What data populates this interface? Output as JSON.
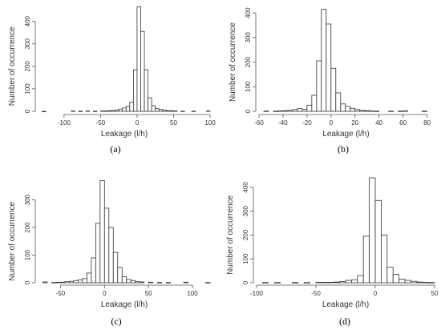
{
  "chart_data": [
    {
      "type": "bar",
      "xlabel": "Leakage (l/h)",
      "ylabel": "Number of occurrence",
      "caption": "(a)",
      "xticks": [
        -100,
        -50,
        0,
        50,
        100
      ],
      "yticks": [
        0,
        100,
        200,
        300,
        400
      ],
      "xlim": [
        -135,
        100
      ],
      "ylim": [
        0,
        470
      ],
      "bin_width": 5,
      "bins": [
        {
          "x": -130,
          "value": 0
        },
        {
          "x": -90,
          "value": 2
        },
        {
          "x": -80,
          "value": 1
        },
        {
          "x": -70,
          "value": 2
        },
        {
          "x": -60,
          "value": 1
        },
        {
          "x": -50,
          "value": 2
        },
        {
          "x": -45,
          "value": 2
        },
        {
          "x": -40,
          "value": 3
        },
        {
          "x": -35,
          "value": 4
        },
        {
          "x": -30,
          "value": 6
        },
        {
          "x": -25,
          "value": 10
        },
        {
          "x": -20,
          "value": 15
        },
        {
          "x": -15,
          "value": 22
        },
        {
          "x": -10,
          "value": 40
        },
        {
          "x": -5,
          "value": 185
        },
        {
          "x": 0,
          "value": 465
        },
        {
          "x": 5,
          "value": 355
        },
        {
          "x": 10,
          "value": 185
        },
        {
          "x": 15,
          "value": 60
        },
        {
          "x": 20,
          "value": 25
        },
        {
          "x": 25,
          "value": 12
        },
        {
          "x": 30,
          "value": 8
        },
        {
          "x": 35,
          "value": 6
        },
        {
          "x": 40,
          "value": 3
        },
        {
          "x": 45,
          "value": 3
        },
        {
          "x": 50,
          "value": 2
        },
        {
          "x": 60,
          "value": 1
        },
        {
          "x": 75,
          "value": 1
        },
        {
          "x": 95,
          "value": 2
        }
      ]
    },
    {
      "type": "bar",
      "xlabel": "Leakage (l/h)",
      "ylabel": "Number of occurrence",
      "caption": "(b)",
      "xticks": [
        -60,
        -40,
        -20,
        0,
        20,
        40,
        60,
        80
      ],
      "yticks": [
        0,
        100,
        200,
        300,
        400
      ],
      "xlim": [
        -60,
        85
      ],
      "ylim": [
        0,
        420
      ],
      "bin_width": 4,
      "bins": [
        {
          "x": -56,
          "value": 1
        },
        {
          "x": -48,
          "value": 1
        },
        {
          "x": -44,
          "value": 2
        },
        {
          "x": -40,
          "value": 3
        },
        {
          "x": -36,
          "value": 4
        },
        {
          "x": -32,
          "value": 7
        },
        {
          "x": -28,
          "value": 11
        },
        {
          "x": -24,
          "value": 8
        },
        {
          "x": -20,
          "value": 25
        },
        {
          "x": -16,
          "value": 65
        },
        {
          "x": -12,
          "value": 205
        },
        {
          "x": -8,
          "value": 415
        },
        {
          "x": -4,
          "value": 355
        },
        {
          "x": 0,
          "value": 175
        },
        {
          "x": 4,
          "value": 75
        },
        {
          "x": 8,
          "value": 30
        },
        {
          "x": 12,
          "value": 20
        },
        {
          "x": 16,
          "value": 12
        },
        {
          "x": 20,
          "value": 7
        },
        {
          "x": 24,
          "value": 4
        },
        {
          "x": 28,
          "value": 3
        },
        {
          "x": 32,
          "value": 2
        },
        {
          "x": 36,
          "value": 1
        },
        {
          "x": 48,
          "value": 1
        },
        {
          "x": 56,
          "value": 1
        },
        {
          "x": 60,
          "value": 2
        },
        {
          "x": 76,
          "value": 1
        }
      ]
    },
    {
      "type": "bar",
      "xlabel": "Leakage (l/h)",
      "ylabel": "Number of occurrence",
      "caption": "(c)",
      "xticks": [
        -50,
        0,
        50,
        100
      ],
      "yticks": [
        0,
        100,
        200,
        300
      ],
      "xlim": [
        -75,
        120
      ],
      "ylim": [
        0,
        380
      ],
      "bin_width": 5,
      "bins": [
        {
          "x": -70,
          "value": 3
        },
        {
          "x": -60,
          "value": 1
        },
        {
          "x": -55,
          "value": 2
        },
        {
          "x": -50,
          "value": 2
        },
        {
          "x": -45,
          "value": 4
        },
        {
          "x": -40,
          "value": 5
        },
        {
          "x": -35,
          "value": 8
        },
        {
          "x": -30,
          "value": 10
        },
        {
          "x": -25,
          "value": 15
        },
        {
          "x": -20,
          "value": 35
        },
        {
          "x": -15,
          "value": 90
        },
        {
          "x": -10,
          "value": 215
        },
        {
          "x": -5,
          "value": 370
        },
        {
          "x": 0,
          "value": 270
        },
        {
          "x": 5,
          "value": 200
        },
        {
          "x": 10,
          "value": 110
        },
        {
          "x": 15,
          "value": 55
        },
        {
          "x": 20,
          "value": 22
        },
        {
          "x": 25,
          "value": 12
        },
        {
          "x": 30,
          "value": 8
        },
        {
          "x": 35,
          "value": 4
        },
        {
          "x": 40,
          "value": 3
        },
        {
          "x": 50,
          "value": 2
        },
        {
          "x": 60,
          "value": 1
        },
        {
          "x": 70,
          "value": 1
        },
        {
          "x": 90,
          "value": 2
        },
        {
          "x": 115,
          "value": 1
        }
      ]
    },
    {
      "type": "bar",
      "xlabel": "Leakage (l/h)",
      "ylabel": "Number of occurrence",
      "caption": "(d)",
      "xticks": [
        -100,
        -50,
        0,
        50
      ],
      "yticks": [
        0,
        100,
        200,
        300,
        400
      ],
      "xlim": [
        -100,
        50
      ],
      "ylim": [
        0,
        440
      ],
      "bin_width": 5,
      "bins": [
        {
          "x": -95,
          "value": 1
        },
        {
          "x": -85,
          "value": 1
        },
        {
          "x": -70,
          "value": 1
        },
        {
          "x": -60,
          "value": 1
        },
        {
          "x": -50,
          "value": 2
        },
        {
          "x": -45,
          "value": 2
        },
        {
          "x": -40,
          "value": 2
        },
        {
          "x": -35,
          "value": 3
        },
        {
          "x": -30,
          "value": 5
        },
        {
          "x": -25,
          "value": 10
        },
        {
          "x": -20,
          "value": 12
        },
        {
          "x": -15,
          "value": 30
        },
        {
          "x": -10,
          "value": 195
        },
        {
          "x": -5,
          "value": 440
        },
        {
          "x": 0,
          "value": 345
        },
        {
          "x": 5,
          "value": 200
        },
        {
          "x": 10,
          "value": 65
        },
        {
          "x": 15,
          "value": 35
        },
        {
          "x": 20,
          "value": 15
        },
        {
          "x": 25,
          "value": 10
        },
        {
          "x": 30,
          "value": 6
        },
        {
          "x": 35,
          "value": 3
        },
        {
          "x": 40,
          "value": 2
        },
        {
          "x": 45,
          "value": 1
        }
      ]
    }
  ]
}
